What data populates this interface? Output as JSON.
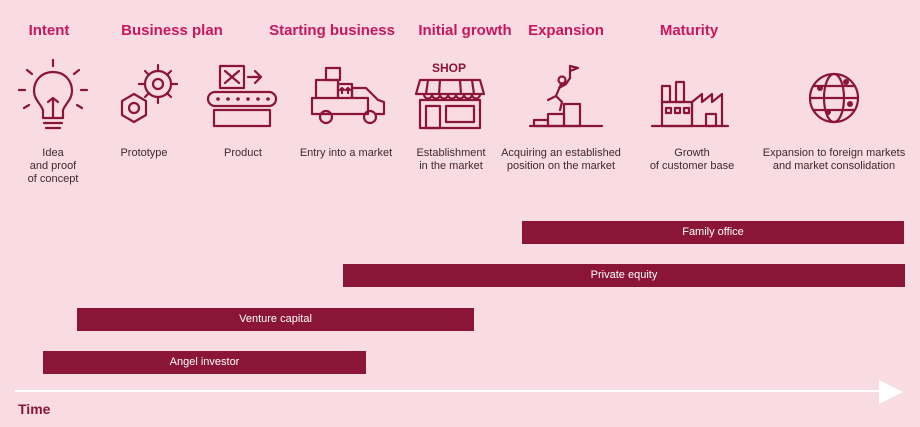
{
  "colors": {
    "background": "#f8dbe3",
    "stage_title": "#c8175d",
    "bar": "#8b1536",
    "icon": "#8b1536",
    "timeline": "#ffffff"
  },
  "stages": [
    {
      "title": "Intent",
      "description": ""
    },
    {
      "title": "Business plan",
      "description": ""
    },
    {
      "title": "Starting business",
      "description": ""
    },
    {
      "title": "Initial growth",
      "description": ""
    },
    {
      "title": "Expansion",
      "description": ""
    },
    {
      "title": "Maturity",
      "description": ""
    }
  ],
  "steps": [
    {
      "icon": "lightbulb-icon",
      "description": "Idea\nand proof\nof concept"
    },
    {
      "icon": "gears-icon",
      "description": "Prototype"
    },
    {
      "icon": "conveyor-icon",
      "description": "Product"
    },
    {
      "icon": "delivery-truck-icon",
      "description": "Entry into a market"
    },
    {
      "icon": "shop-icon",
      "description": "Establishment\nin the market"
    },
    {
      "icon": "podium-climb-icon",
      "description": "Acquiring an established\nposition on the market"
    },
    {
      "icon": "factory-icon",
      "description": "Growth\nof customer base"
    },
    {
      "icon": "globe-network-icon",
      "description": "Expansion to foreign markets\nand market consolidation"
    }
  ],
  "shop_sign": "SHOP",
  "financing": [
    {
      "label": "Family office"
    },
    {
      "label": "Private equity"
    },
    {
      "label": "Venture capital"
    },
    {
      "label": "Angel investor"
    }
  ],
  "axis_label": "Time"
}
